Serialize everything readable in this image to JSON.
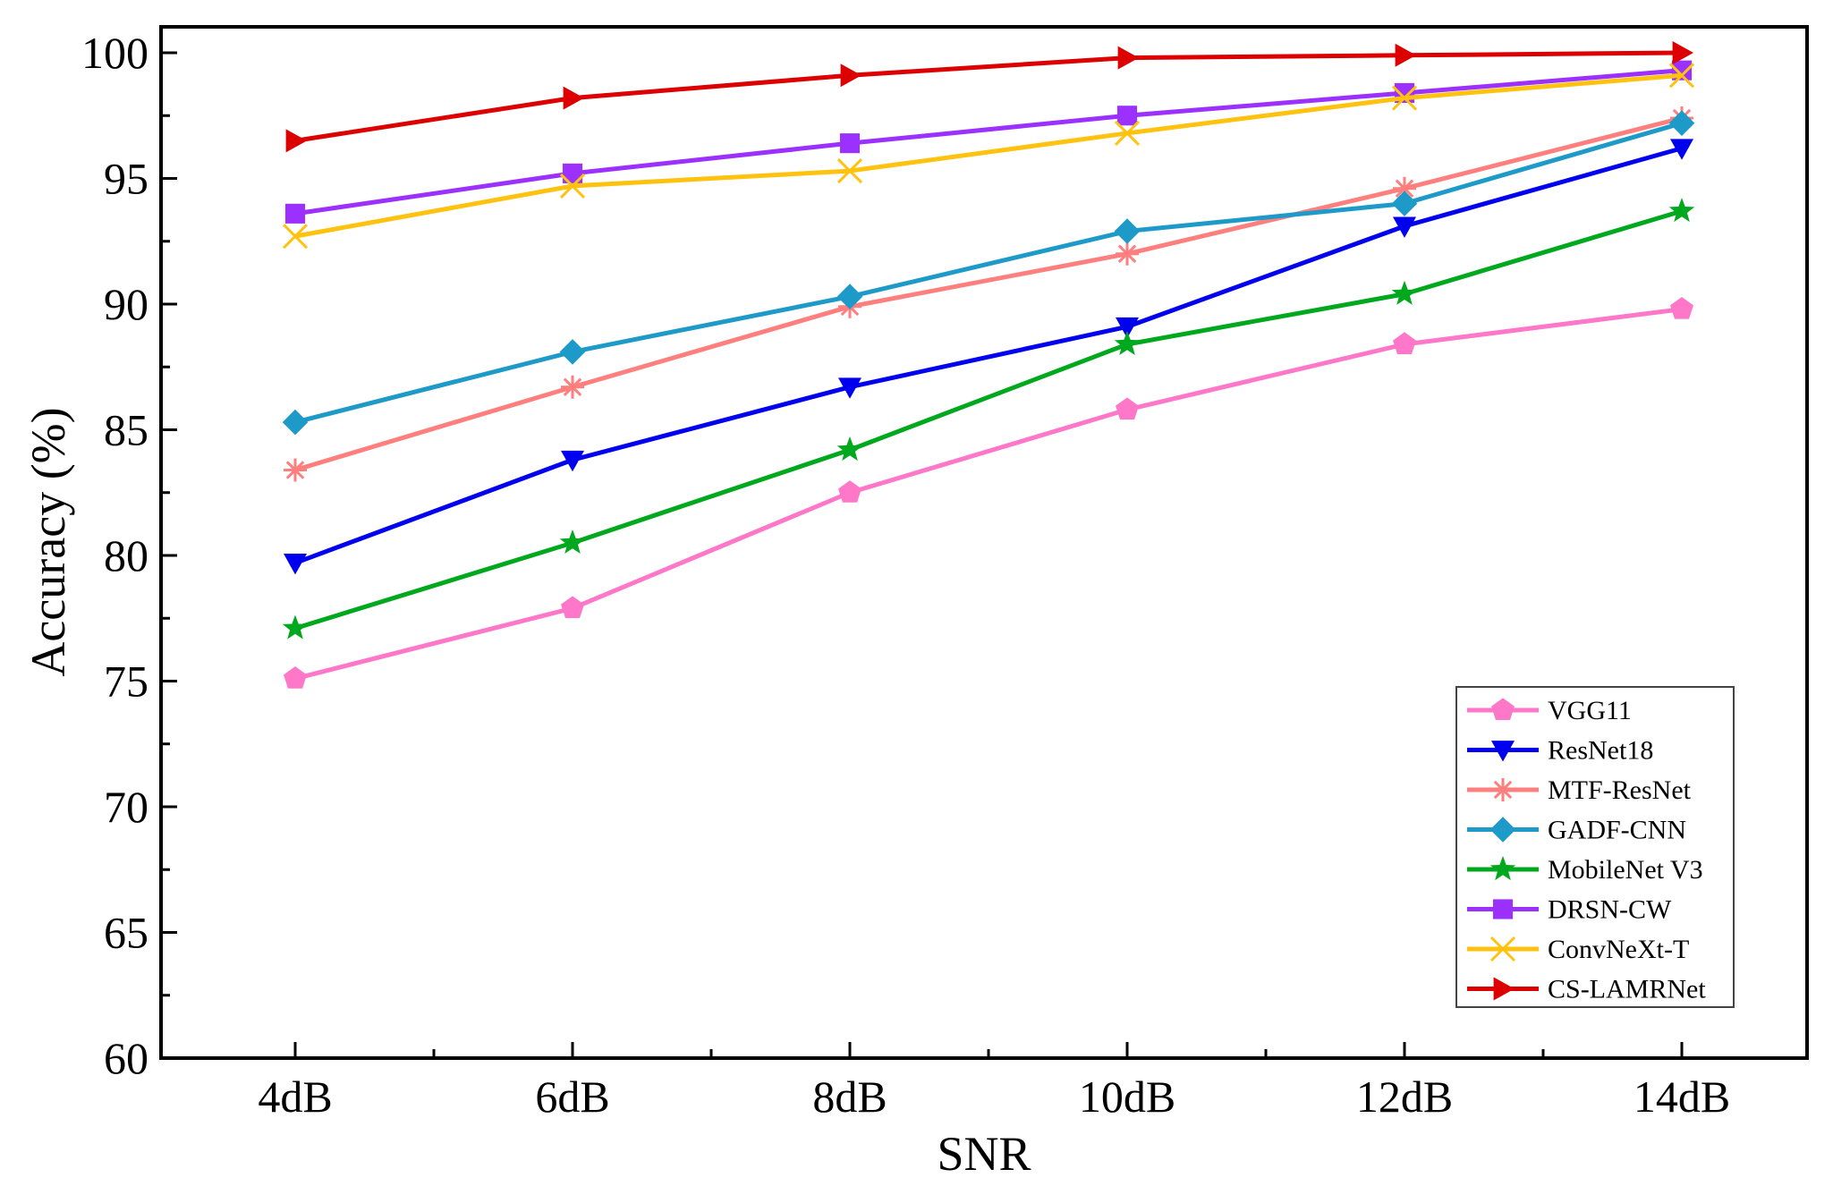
{
  "chart_data": {
    "type": "line",
    "title": "",
    "xlabel": "SNR",
    "ylabel": "Accuracy (%)",
    "categories": [
      "4dB",
      "6dB",
      "8dB",
      "10dB",
      "12dB",
      "14dB"
    ],
    "ylim": [
      60,
      100
    ],
    "yticks": [
      60,
      65,
      70,
      75,
      80,
      85,
      90,
      95,
      100
    ],
    "grid": false,
    "legend_position": "bottom-right",
    "series": [
      {
        "name": "VGG11",
        "color": "#FF77C8",
        "marker": "pentagon",
        "values": [
          75.1,
          77.9,
          82.5,
          85.8,
          88.4,
          89.8
        ]
      },
      {
        "name": "ResNet18",
        "color": "#0000EE",
        "marker": "triangle-down",
        "values": [
          79.7,
          83.8,
          86.7,
          89.1,
          93.1,
          96.2
        ]
      },
      {
        "name": "MTF-ResNet",
        "color": "#FF7F7F",
        "marker": "asterisk",
        "values": [
          83.4,
          86.7,
          89.9,
          92.0,
          94.6,
          97.4
        ]
      },
      {
        "name": "GADF-CNN",
        "color": "#1E9AC8",
        "marker": "diamond",
        "values": [
          85.3,
          88.1,
          90.3,
          92.9,
          94.0,
          97.2
        ]
      },
      {
        "name": "MobileNet V3",
        "color": "#00A81E",
        "marker": "star",
        "values": [
          77.1,
          80.5,
          84.2,
          88.4,
          90.4,
          93.7
        ]
      },
      {
        "name": "DRSN-CW",
        "color": "#9B30FF",
        "marker": "square",
        "values": [
          93.6,
          95.2,
          96.4,
          97.5,
          98.4,
          99.3
        ]
      },
      {
        "name": "ConvNeXt-T",
        "color": "#FFC20E",
        "marker": "x",
        "values": [
          92.7,
          94.7,
          95.3,
          96.8,
          98.2,
          99.1
        ]
      },
      {
        "name": "CS-LAMRNet",
        "color": "#DD0000",
        "marker": "triangle-right",
        "values": [
          96.5,
          98.2,
          99.1,
          99.8,
          99.9,
          100.0
        ]
      }
    ]
  }
}
